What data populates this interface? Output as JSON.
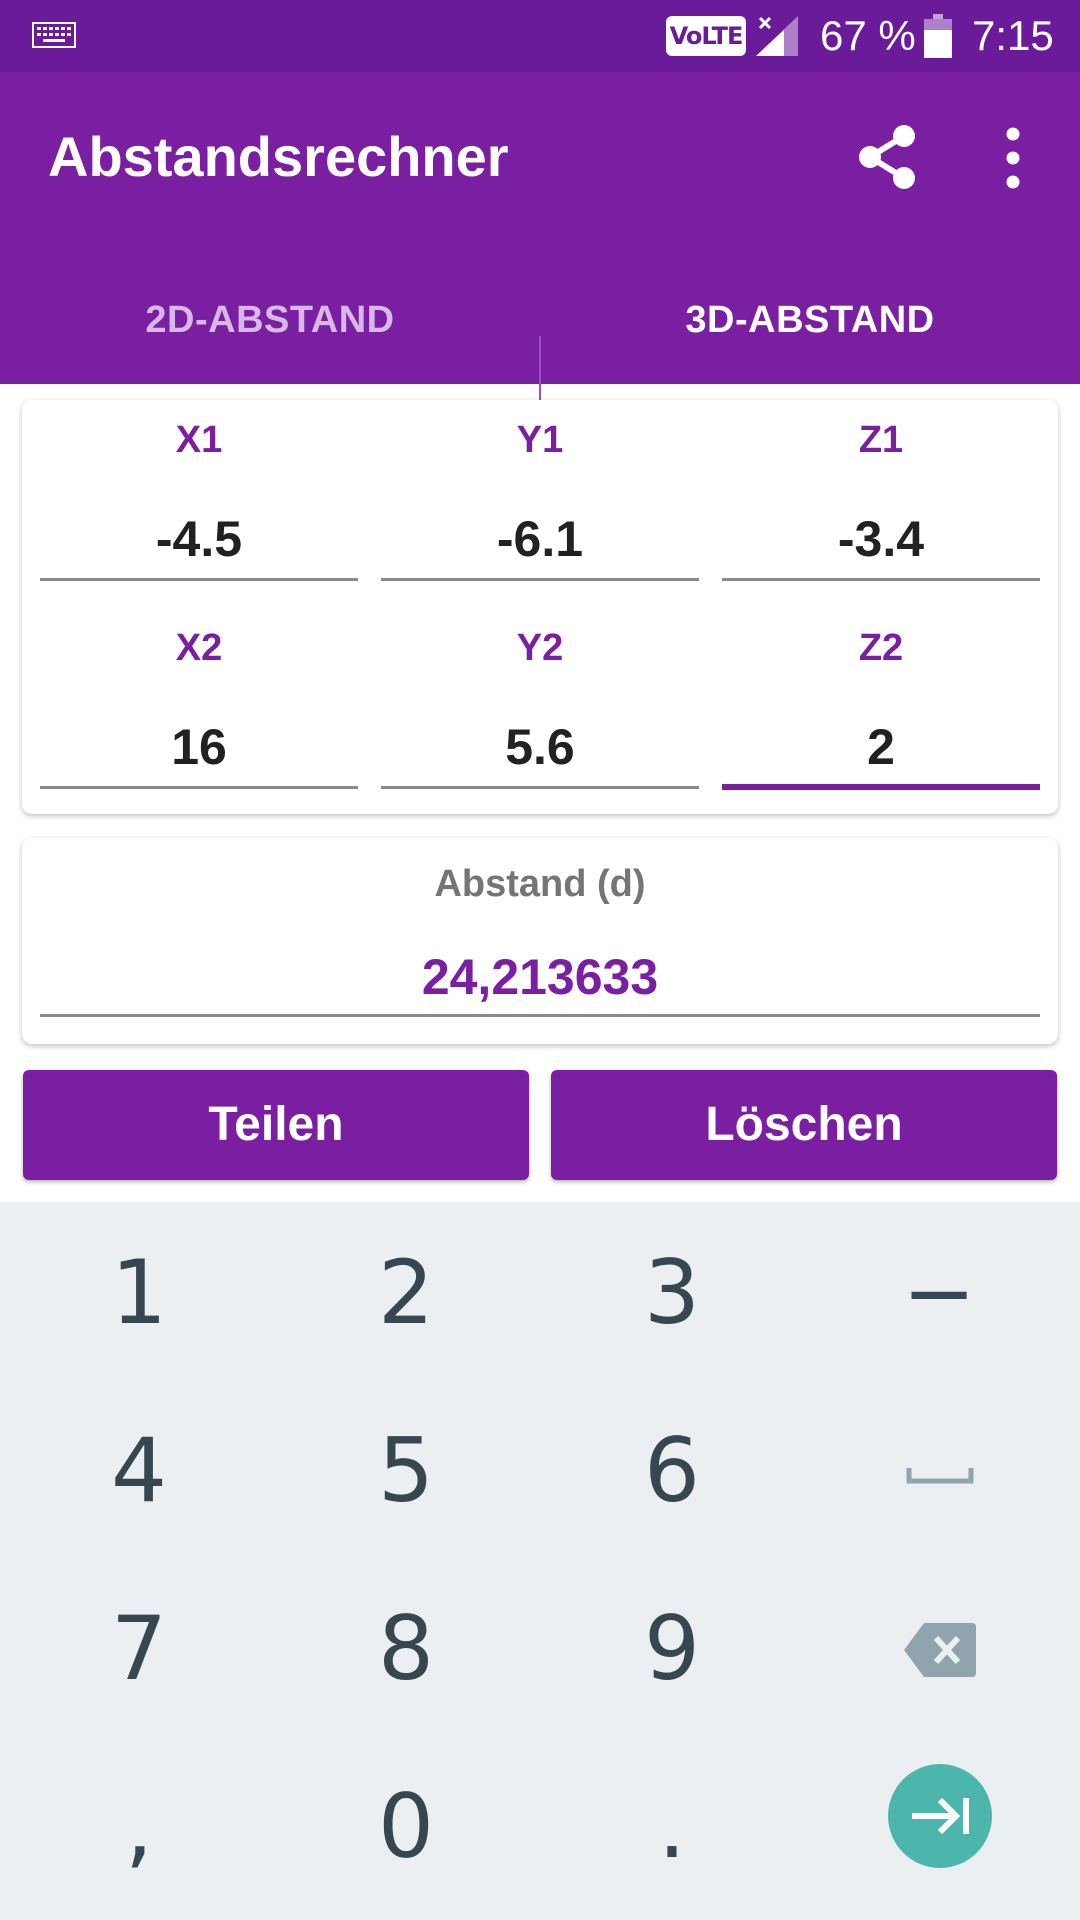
{
  "status_bar": {
    "network_badge": "VoLTE",
    "battery_percent": "67 %",
    "time": "7:15"
  },
  "app_bar": {
    "title": "Abstandsrechner",
    "tabs": [
      {
        "label": "2D-ABSTAND",
        "selected": false
      },
      {
        "label": "3D-ABSTAND",
        "selected": true
      }
    ]
  },
  "inputs": {
    "x1": {
      "label": "X1",
      "value": "-4.5"
    },
    "y1": {
      "label": "Y1",
      "value": "-6.1"
    },
    "z1": {
      "label": "Z1",
      "value": "-3.4"
    },
    "x2": {
      "label": "X2",
      "value": "16"
    },
    "y2": {
      "label": "Y2",
      "value": "5.6"
    },
    "z2": {
      "label": "Z2",
      "value": "2"
    }
  },
  "result": {
    "label": "Abstand (d)",
    "value": "24,213633"
  },
  "buttons": {
    "share_label": "Teilen",
    "clear_label": "Löschen"
  },
  "keyboard": {
    "keys": [
      "1",
      "2",
      "3",
      "−",
      "4",
      "5",
      "6",
      "7",
      "8",
      "9",
      ",",
      "0",
      "."
    ]
  },
  "colors": {
    "primary": "#7b1fa2",
    "primary_dark": "#6a1b9a",
    "accent_enter": "#4db6ac",
    "keyboard_bg": "#eceff1",
    "key_text": "#37474f"
  },
  "icons": {
    "keyboard_status": "keyboard-icon",
    "signal": "signal-icon",
    "battery": "battery-icon",
    "share": "share-icon",
    "more": "more-vert-icon",
    "space": "space-icon",
    "backspace": "backspace-icon",
    "next": "next-field-icon"
  }
}
